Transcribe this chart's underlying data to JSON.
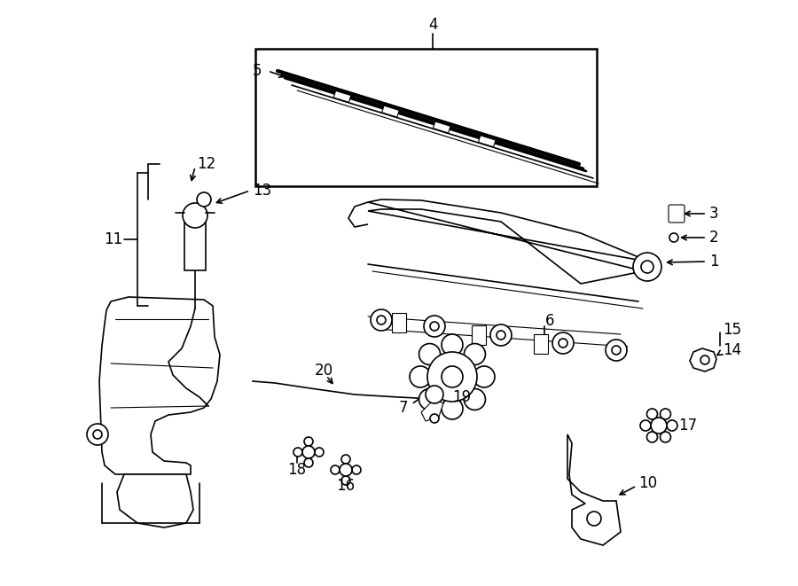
{
  "bg": "#ffffff",
  "fw": 9.0,
  "fh": 6.61,
  "dpi": 100,
  "xlim": [
    0,
    900
  ],
  "ylim": [
    0,
    661
  ]
}
